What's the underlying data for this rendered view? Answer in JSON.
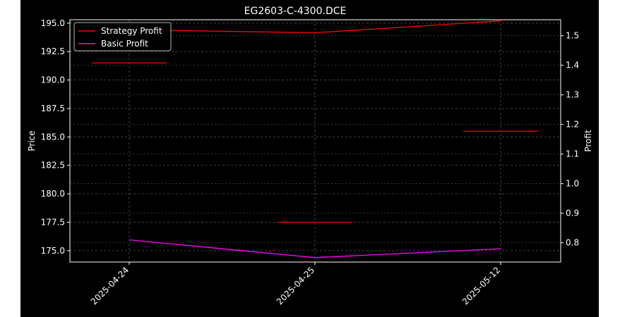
{
  "chart_data": {
    "type": "line",
    "title": "EG2603-C-4300.DCE",
    "xlabel": "",
    "ylabel": "Price",
    "y2label": "Profit",
    "categories": [
      "2025-04-24",
      "2025-04-25",
      "2025-05-12"
    ],
    "ylim": [
      174.0,
      195.3
    ],
    "y2lim": [
      0.735,
      1.554
    ],
    "yticks": [
      "175.0",
      "177.5",
      "180.0",
      "182.5",
      "185.0",
      "187.5",
      "190.0",
      "192.5",
      "195.0"
    ],
    "y2ticks": [
      "0.8",
      "0.9",
      "1.0",
      "1.1",
      "1.2",
      "1.3",
      "1.4",
      "1.5"
    ],
    "grid": true,
    "legend_position": "top-left",
    "price_levels": [
      {
        "category": "2025-04-24",
        "value": 191.5
      },
      {
        "category": "2025-04-25",
        "value": 177.5
      },
      {
        "category": "2025-05-12",
        "value": 185.5
      }
    ],
    "series": [
      {
        "name": "Strategy Profit",
        "axis": "right",
        "color": "#ff0000",
        "values": [
          1.52,
          1.51,
          1.55
        ]
      },
      {
        "name": "Basic Profit",
        "axis": "right",
        "color": "#ff00ff",
        "values": [
          0.81,
          0.75,
          0.78
        ]
      }
    ],
    "colors": {
      "background": "#000000",
      "axes": "#ffffff",
      "grid": "#555555",
      "price_level": "#ff0000"
    }
  }
}
